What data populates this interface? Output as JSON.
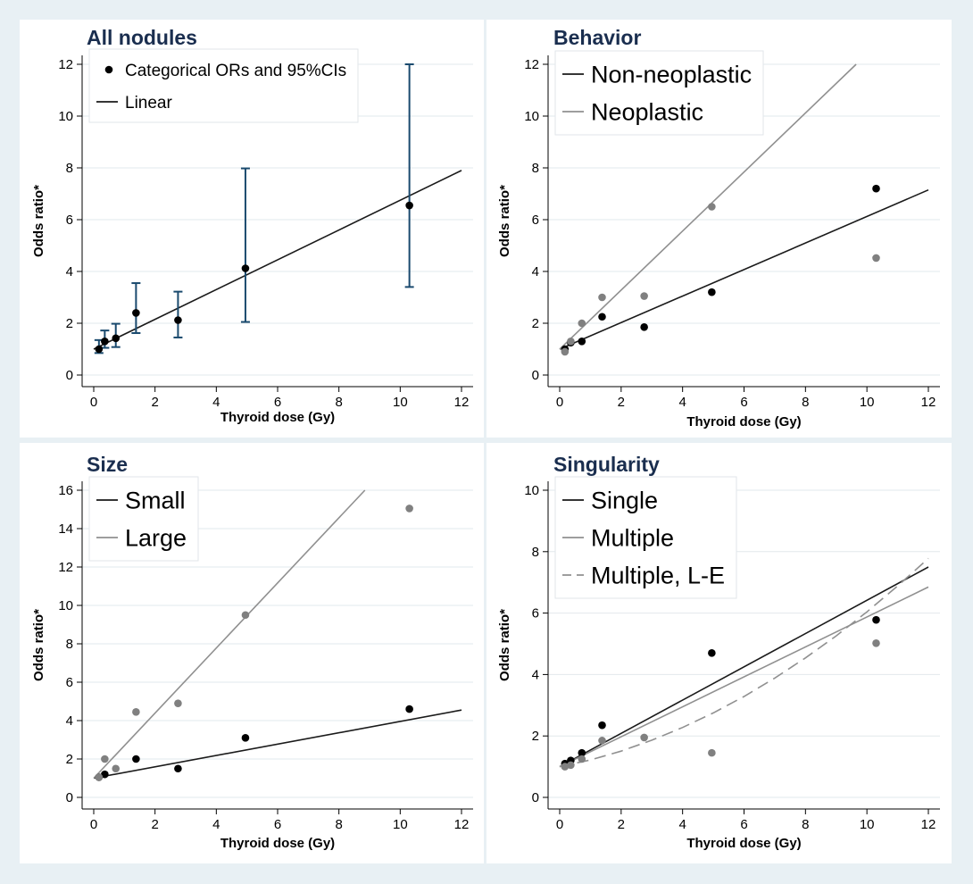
{
  "chart_data": [
    {
      "type": "scatter",
      "title": "All nodules",
      "xlabel": "Thyroid dose (Gy)",
      "ylabel": "Odds ratio*",
      "xlim": [
        0,
        12
      ],
      "ylim": [
        0,
        12
      ],
      "xticks": [
        0,
        2,
        4,
        6,
        8,
        10,
        12
      ],
      "yticks": [
        0,
        2,
        4,
        6,
        8,
        10,
        12
      ],
      "legend_position": "top-left",
      "legend_font_size": 19,
      "points": [
        {
          "name": "Categorical ORs and 95%CIs",
          "color": "#000000",
          "x": [
            0.17,
            0.36,
            0.72,
            1.38,
            2.75,
            4.95,
            10.3
          ],
          "y": [
            1.0,
            1.3,
            1.42,
            2.4,
            2.12,
            4.12,
            6.55
          ],
          "ci_low": [
            0.85,
            1.05,
            1.08,
            1.62,
            1.45,
            2.05,
            3.4
          ],
          "ci_high": [
            1.35,
            1.72,
            1.98,
            3.55,
            3.22,
            7.98,
            12.0
          ]
        }
      ],
      "lines": [
        {
          "name": "Linear",
          "color": "#1a1a1a",
          "x": [
            0,
            12
          ],
          "y": [
            1.0,
            7.9
          ]
        }
      ],
      "legend": [
        {
          "label": "Categorical ORs and 95%CIs",
          "kind": "dot",
          "color": "#000000"
        },
        {
          "label": "Linear",
          "kind": "line",
          "color": "#1a1a1a"
        }
      ],
      "ci_color": "#1a4a6e"
    },
    {
      "type": "scatter",
      "title": "Behavior",
      "xlabel": "Thyroid dose (Gy)",
      "ylabel": "Odds ratio*",
      "xlim": [
        0,
        12
      ],
      "ylim": [
        0,
        12
      ],
      "xticks": [
        0,
        2,
        4,
        6,
        8,
        10,
        12
      ],
      "yticks": [
        0,
        2,
        4,
        6,
        8,
        10,
        12
      ],
      "legend_position": "top-left",
      "legend_font_size": 27,
      "points": [
        {
          "name": "Non-neoplastic",
          "color": "#000000",
          "x": [
            0.17,
            0.36,
            0.72,
            1.38,
            2.75,
            4.95,
            10.3
          ],
          "y": [
            1.0,
            1.25,
            1.3,
            2.25,
            1.85,
            3.2,
            7.2
          ]
        },
        {
          "name": "Neoplastic",
          "color": "#808080",
          "x": [
            0.17,
            0.36,
            0.72,
            1.38,
            2.75,
            4.95,
            10.3
          ],
          "y": [
            0.9,
            1.3,
            2.0,
            3.0,
            3.05,
            6.5,
            4.52
          ]
        }
      ],
      "lines": [
        {
          "name": "Non-neoplastic",
          "color": "#1a1a1a",
          "x": [
            0,
            12
          ],
          "y": [
            1.0,
            7.15
          ]
        },
        {
          "name": "Neoplastic",
          "color": "#909090",
          "x": [
            0,
            9.65
          ],
          "y": [
            1.0,
            12.0
          ]
        }
      ],
      "legend": [
        {
          "label": "Non-neoplastic",
          "kind": "line",
          "color": "#1a1a1a"
        },
        {
          "label": "Neoplastic",
          "kind": "line",
          "color": "#909090"
        }
      ]
    },
    {
      "type": "scatter",
      "title": "Size",
      "xlabel": "Thyroid dose (Gy)",
      "ylabel": "Odds ratio*",
      "xlim": [
        0,
        12
      ],
      "ylim": [
        0,
        16
      ],
      "xticks": [
        0,
        2,
        4,
        6,
        8,
        10,
        12
      ],
      "yticks": [
        0,
        2,
        4,
        6,
        8,
        10,
        12,
        14,
        16
      ],
      "legend_position": "top-left",
      "legend_font_size": 27,
      "points": [
        {
          "name": "Small",
          "color": "#000000",
          "x": [
            0.17,
            0.36,
            1.38,
            2.75,
            4.95,
            10.3
          ],
          "y": [
            1.05,
            1.2,
            2.0,
            1.5,
            3.1,
            4.6
          ]
        },
        {
          "name": "Large",
          "color": "#808080",
          "x": [
            0.17,
            0.36,
            0.72,
            1.38,
            2.75,
            4.95,
            10.3
          ],
          "y": [
            1.05,
            2.0,
            1.5,
            4.45,
            4.9,
            9.5,
            15.05
          ]
        }
      ],
      "lines": [
        {
          "name": "Small",
          "color": "#1a1a1a",
          "x": [
            0,
            12
          ],
          "y": [
            1.0,
            4.55
          ]
        },
        {
          "name": "Large",
          "color": "#909090",
          "x": [
            0,
            8.85
          ],
          "y": [
            1.0,
            16.0
          ]
        }
      ],
      "legend": [
        {
          "label": "Small",
          "kind": "line",
          "color": "#1a1a1a"
        },
        {
          "label": "Large",
          "kind": "line",
          "color": "#909090"
        }
      ]
    },
    {
      "type": "scatter",
      "title": "Singularity",
      "xlabel": "Thyroid dose (Gy)",
      "ylabel": "Odds ratio*",
      "xlim": [
        0,
        12
      ],
      "ylim": [
        0,
        10
      ],
      "xticks": [
        0,
        2,
        4,
        6,
        8,
        10,
        12
      ],
      "yticks": [
        0,
        2,
        4,
        6,
        8,
        10
      ],
      "legend_position": "top-left",
      "legend_font_size": 27,
      "points": [
        {
          "name": "Single",
          "color": "#000000",
          "x": [
            0.17,
            0.36,
            0.72,
            1.38,
            4.95,
            10.3
          ],
          "y": [
            1.1,
            1.2,
            1.45,
            2.35,
            4.7,
            5.78
          ]
        },
        {
          "name": "Multiple",
          "color": "#808080",
          "x": [
            0.17,
            0.36,
            0.72,
            1.38,
            2.75,
            4.95,
            10.3
          ],
          "y": [
            1.0,
            1.05,
            1.25,
            1.85,
            1.95,
            1.45,
            5.02
          ]
        }
      ],
      "lines": [
        {
          "name": "Single",
          "color": "#1a1a1a",
          "x": [
            0,
            12
          ],
          "y": [
            1.0,
            7.5
          ]
        },
        {
          "name": "Multiple",
          "color": "#909090",
          "x": [
            0,
            12
          ],
          "y": [
            1.0,
            6.85
          ]
        },
        {
          "name": "Multiple, L-E",
          "color": "#909090",
          "dashed": true,
          "x": [
            0,
            1,
            2,
            3,
            4,
            5,
            6,
            7,
            8,
            9,
            10,
            11,
            12
          ],
          "y": [
            1.0,
            1.217,
            1.506,
            1.862,
            2.275,
            2.75,
            3.286,
            3.883,
            4.54,
            5.259,
            6.04,
            6.883,
            7.78
          ]
        }
      ],
      "legend": [
        {
          "label": "Single",
          "kind": "line",
          "color": "#1a1a1a"
        },
        {
          "label": "Multiple",
          "kind": "line",
          "color": "#909090"
        },
        {
          "label": "Multiple, L-E",
          "kind": "dash",
          "color": "#909090"
        }
      ]
    }
  ]
}
